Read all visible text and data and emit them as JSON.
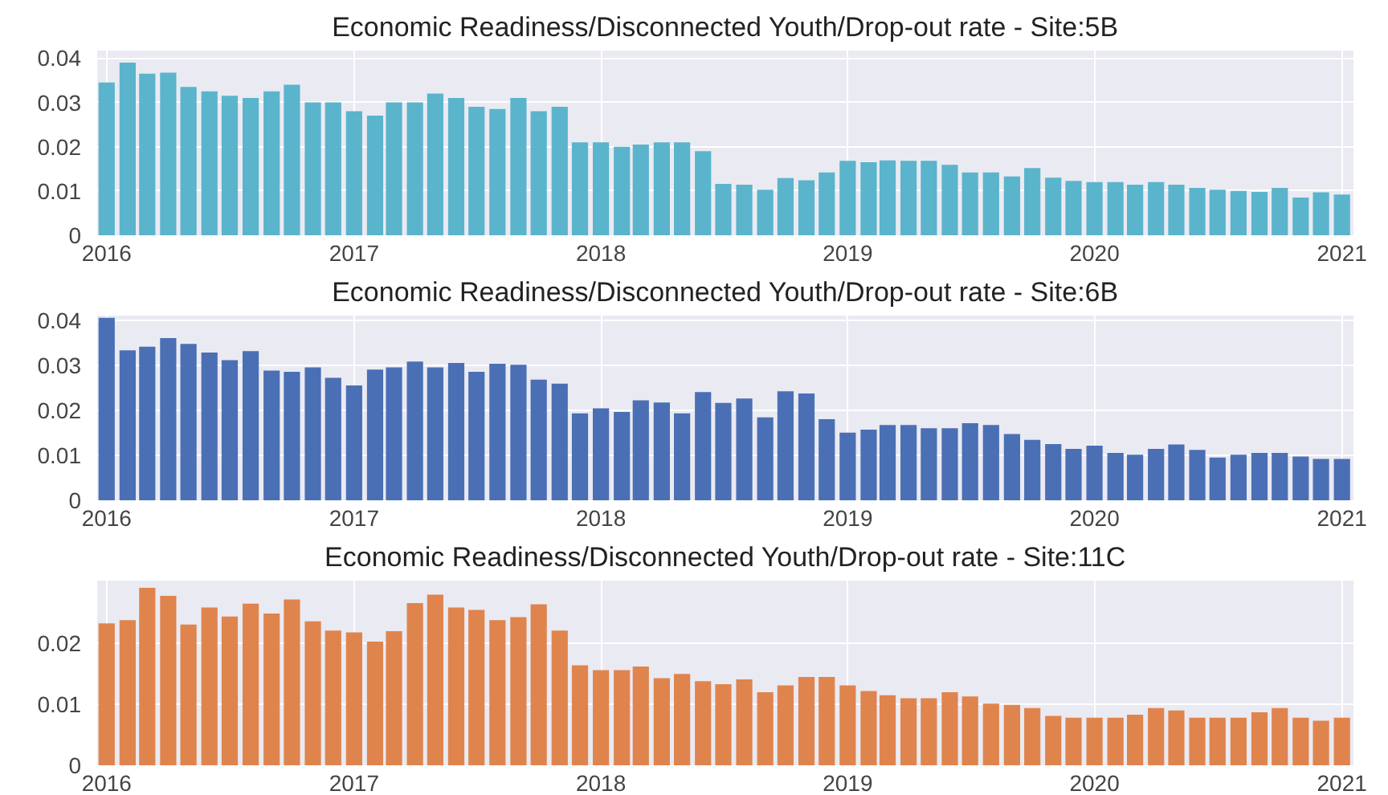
{
  "chart_data": [
    {
      "type": "bar",
      "title": "Economic Readiness/Disconnected Youth/Drop-out rate - Site:5B",
      "x": [
        "2016-01",
        "2016-02",
        "2016-03",
        "2016-04",
        "2016-05",
        "2016-06",
        "2016-07",
        "2016-08",
        "2016-09",
        "2016-10",
        "2016-11",
        "2016-12",
        "2017-01",
        "2017-02",
        "2017-03",
        "2017-04",
        "2017-05",
        "2017-06",
        "2017-07",
        "2017-08",
        "2017-09",
        "2017-10",
        "2017-11",
        "2017-12",
        "2018-01",
        "2018-02",
        "2018-03",
        "2018-04",
        "2018-05",
        "2018-06",
        "2018-07",
        "2018-08",
        "2018-09",
        "2018-10",
        "2018-11",
        "2018-12",
        "2019-01",
        "2019-02",
        "2019-03",
        "2019-04",
        "2019-05",
        "2019-06",
        "2019-07",
        "2019-08",
        "2019-09",
        "2019-10",
        "2019-11",
        "2019-12",
        "2020-01",
        "2020-02",
        "2020-03",
        "2020-04",
        "2020-05",
        "2020-06",
        "2020-07",
        "2020-08",
        "2020-09",
        "2020-10",
        "2020-11",
        "2020-12",
        "2021-01"
      ],
      "values": [
        0.0345,
        0.039,
        0.0365,
        0.0367,
        0.0335,
        0.0325,
        0.0315,
        0.031,
        0.0325,
        0.034,
        0.03,
        0.03,
        0.028,
        0.027,
        0.03,
        0.03,
        0.032,
        0.031,
        0.029,
        0.0285,
        0.031,
        0.028,
        0.029,
        0.021,
        0.021,
        0.02,
        0.0205,
        0.021,
        0.021,
        0.019,
        0.0116,
        0.0114,
        0.0103,
        0.0129,
        0.0124,
        0.0142,
        0.0168,
        0.0165,
        0.0169,
        0.0168,
        0.0168,
        0.0159,
        0.0142,
        0.0142,
        0.0133,
        0.0152,
        0.013,
        0.0123,
        0.012,
        0.012,
        0.0114,
        0.012,
        0.0114,
        0.0107,
        0.0103,
        0.01,
        0.0098,
        0.0107,
        0.0085,
        0.0097,
        0.0092
      ],
      "color": "#5ab4cc",
      "xlim": [
        "2015-12-18",
        "2021-01-18"
      ],
      "xticks": [
        {
          "value": "2016-01-01",
          "label": "2016"
        },
        {
          "value": "2017-01-01",
          "label": "2017"
        },
        {
          "value": "2018-01-01",
          "label": "2018"
        },
        {
          "value": "2019-01-01",
          "label": "2019"
        },
        {
          "value": "2020-01-01",
          "label": "2020"
        },
        {
          "value": "2021-01-01",
          "label": "2021"
        }
      ],
      "ylim": [
        0,
        0.0417
      ],
      "yticks": [
        0,
        0.01,
        0.02,
        0.03,
        0.04
      ],
      "grid": true
    },
    {
      "type": "bar",
      "title": "Economic Readiness/Disconnected Youth/Drop-out rate - Site:6B",
      "x": [
        "2016-01",
        "2016-02",
        "2016-03",
        "2016-04",
        "2016-05",
        "2016-06",
        "2016-07",
        "2016-08",
        "2016-09",
        "2016-10",
        "2016-11",
        "2016-12",
        "2017-01",
        "2017-02",
        "2017-03",
        "2017-04",
        "2017-05",
        "2017-06",
        "2017-07",
        "2017-08",
        "2017-09",
        "2017-10",
        "2017-11",
        "2017-12",
        "2018-01",
        "2018-02",
        "2018-03",
        "2018-04",
        "2018-05",
        "2018-06",
        "2018-07",
        "2018-08",
        "2018-09",
        "2018-10",
        "2018-11",
        "2018-12",
        "2019-01",
        "2019-02",
        "2019-03",
        "2019-04",
        "2019-05",
        "2019-06",
        "2019-07",
        "2019-08",
        "2019-09",
        "2019-10",
        "2019-11",
        "2019-12",
        "2020-01",
        "2020-02",
        "2020-03",
        "2020-04",
        "2020-05",
        "2020-06",
        "2020-07",
        "2020-08",
        "2020-09",
        "2020-10",
        "2020-11",
        "2020-12",
        "2021-01"
      ],
      "values": [
        0.0405,
        0.0333,
        0.0341,
        0.036,
        0.0347,
        0.0328,
        0.0311,
        0.0331,
        0.0288,
        0.0285,
        0.0295,
        0.0272,
        0.0255,
        0.029,
        0.0295,
        0.0308,
        0.0295,
        0.0305,
        0.0285,
        0.0303,
        0.0301,
        0.0268,
        0.0259,
        0.0193,
        0.0204,
        0.0196,
        0.0222,
        0.0217,
        0.0193,
        0.024,
        0.0216,
        0.0226,
        0.0184,
        0.0242,
        0.0237,
        0.018,
        0.015,
        0.0157,
        0.0167,
        0.0167,
        0.016,
        0.016,
        0.0171,
        0.0167,
        0.0147,
        0.0134,
        0.0125,
        0.0114,
        0.0121,
        0.0105,
        0.0101,
        0.0114,
        0.0124,
        0.0112,
        0.0095,
        0.0101,
        0.0105,
        0.0105,
        0.0097,
        0.0092,
        0.0092
      ],
      "color": "#4a6fb5",
      "xlim": [
        "2015-12-18",
        "2021-01-18"
      ],
      "xticks": [
        {
          "value": "2016-01-01",
          "label": "2016"
        },
        {
          "value": "2017-01-01",
          "label": "2017"
        },
        {
          "value": "2018-01-01",
          "label": "2018"
        },
        {
          "value": "2019-01-01",
          "label": "2019"
        },
        {
          "value": "2020-01-01",
          "label": "2020"
        },
        {
          "value": "2021-01-01",
          "label": "2021"
        }
      ],
      "ylim": [
        0,
        0.041
      ],
      "yticks": [
        0,
        0.01,
        0.02,
        0.03,
        0.04
      ],
      "grid": true
    },
    {
      "type": "bar",
      "title": "Economic Readiness/Disconnected Youth/Drop-out rate - Site:11C",
      "x": [
        "2016-01",
        "2016-02",
        "2016-03",
        "2016-04",
        "2016-05",
        "2016-06",
        "2016-07",
        "2016-08",
        "2016-09",
        "2016-10",
        "2016-11",
        "2016-12",
        "2017-01",
        "2017-02",
        "2017-03",
        "2017-04",
        "2017-05",
        "2017-06",
        "2017-07",
        "2017-08",
        "2017-09",
        "2017-10",
        "2017-11",
        "2017-12",
        "2018-01",
        "2018-02",
        "2018-03",
        "2018-04",
        "2018-05",
        "2018-06",
        "2018-07",
        "2018-08",
        "2018-09",
        "2018-10",
        "2018-11",
        "2018-12",
        "2019-01",
        "2019-02",
        "2019-03",
        "2019-04",
        "2019-05",
        "2019-06",
        "2019-07",
        "2019-08",
        "2019-09",
        "2019-10",
        "2019-11",
        "2019-12",
        "2020-01",
        "2020-02",
        "2020-03",
        "2020-04",
        "2020-05",
        "2020-06",
        "2020-07",
        "2020-08",
        "2020-09",
        "2020-10",
        "2020-11",
        "2020-12",
        "2021-01"
      ],
      "values": [
        0.0233,
        0.0238,
        0.0291,
        0.0278,
        0.0231,
        0.0259,
        0.0244,
        0.0265,
        0.0249,
        0.0272,
        0.0236,
        0.0221,
        0.0218,
        0.0203,
        0.022,
        0.0266,
        0.028,
        0.0259,
        0.0255,
        0.0238,
        0.0243,
        0.0264,
        0.0221,
        0.0164,
        0.0156,
        0.0156,
        0.0162,
        0.0143,
        0.015,
        0.0138,
        0.0133,
        0.0141,
        0.012,
        0.0131,
        0.0145,
        0.0145,
        0.0131,
        0.0122,
        0.0115,
        0.011,
        0.011,
        0.012,
        0.0113,
        0.0101,
        0.0099,
        0.0094,
        0.0081,
        0.0078,
        0.0078,
        0.0078,
        0.0083,
        0.0094,
        0.009,
        0.0078,
        0.0078,
        0.0078,
        0.0087,
        0.0094,
        0.0078,
        0.0073,
        0.0078
      ],
      "color": "#e0844d",
      "xlim": [
        "2015-12-18",
        "2021-01-18"
      ],
      "xticks": [
        {
          "value": "2016-01-01",
          "label": "2016"
        },
        {
          "value": "2017-01-01",
          "label": "2017"
        },
        {
          "value": "2018-01-01",
          "label": "2018"
        },
        {
          "value": "2019-01-01",
          "label": "2019"
        },
        {
          "value": "2020-01-01",
          "label": "2020"
        },
        {
          "value": "2021-01-01",
          "label": "2021"
        }
      ],
      "ylim": [
        0,
        0.0303
      ],
      "yticks": [
        0,
        0.01,
        0.02
      ],
      "grid": true
    }
  ]
}
